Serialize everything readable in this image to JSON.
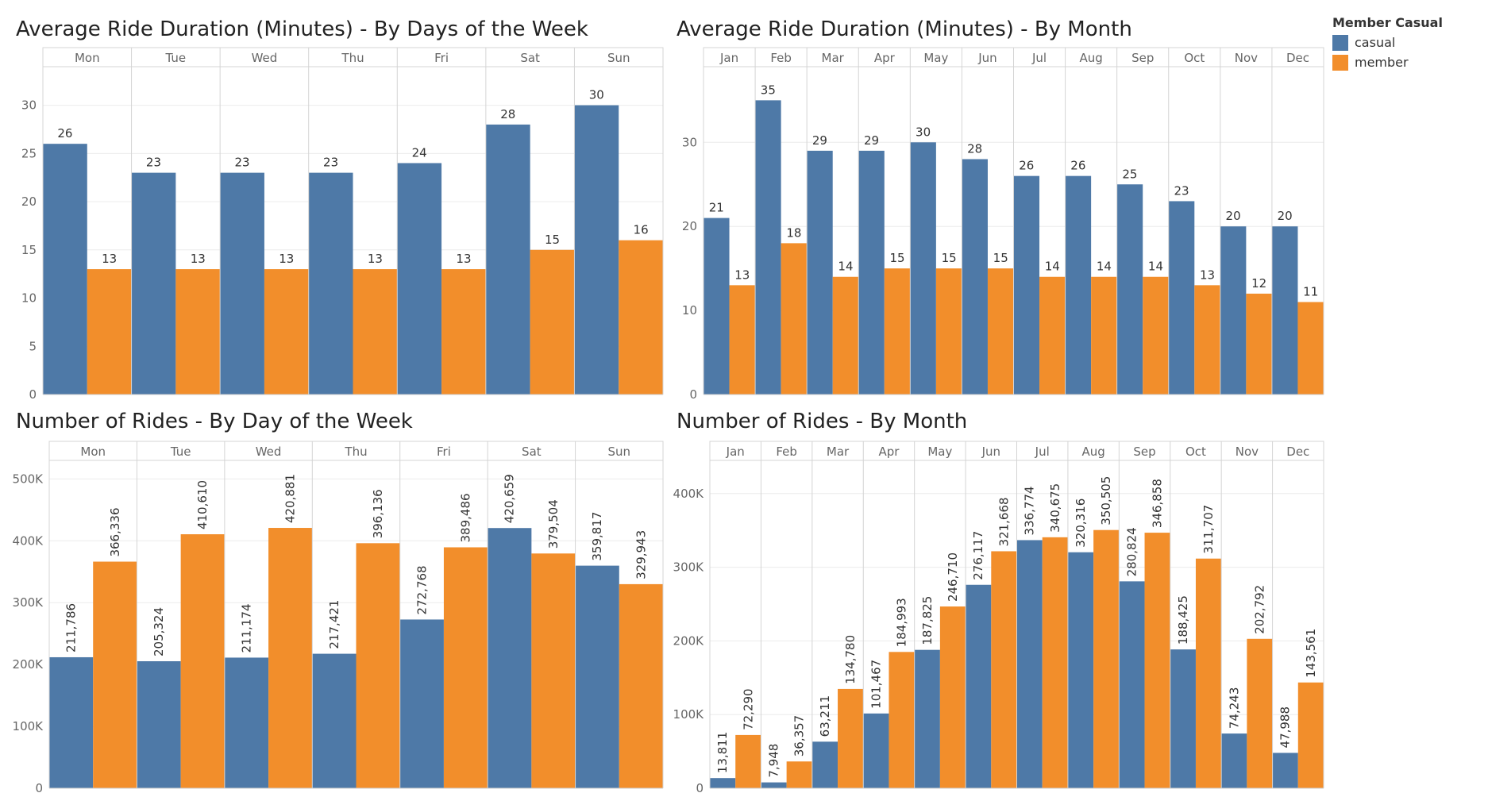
{
  "legend": {
    "title": "Member Casual",
    "items": [
      {
        "label": "casual",
        "color": "#4e79a7"
      },
      {
        "label": "member",
        "color": "#f28e2b"
      }
    ]
  },
  "chart_data": [
    {
      "id": "duration-by-day",
      "type": "bar",
      "title": "Average Ride Duration (Minutes) - By Days of the Week",
      "categories": [
        "Mon",
        "Tue",
        "Wed",
        "Thu",
        "Fri",
        "Sat",
        "Sun"
      ],
      "series": [
        {
          "name": "casual",
          "values": [
            26,
            23,
            23,
            23,
            24,
            28,
            30
          ],
          "labels": [
            "26",
            "23",
            "23",
            "23",
            "24",
            "28",
            "30"
          ]
        },
        {
          "name": "member",
          "values": [
            13,
            13,
            13,
            13,
            13,
            15,
            16
          ],
          "labels": [
            "13",
            "13",
            "13",
            "13",
            "13",
            "15",
            "16"
          ]
        }
      ],
      "ylim": [
        0,
        34
      ],
      "yticks": [
        0,
        5,
        10,
        15,
        20,
        25,
        30
      ],
      "ytick_labels": [
        "0",
        "5",
        "10",
        "15",
        "20",
        "25",
        "30"
      ],
      "label_orientation": "horizontal",
      "grid": true
    },
    {
      "id": "duration-by-month",
      "type": "bar",
      "title": "Average Ride Duration (Minutes) - By Month",
      "categories": [
        "Jan",
        "Feb",
        "Mar",
        "Apr",
        "May",
        "Jun",
        "Jul",
        "Aug",
        "Sep",
        "Oct",
        "Nov",
        "Dec"
      ],
      "series": [
        {
          "name": "casual",
          "values": [
            21,
            35,
            29,
            29,
            30,
            28,
            26,
            26,
            25,
            23,
            20,
            20
          ],
          "labels": [
            "21",
            "35",
            "29",
            "29",
            "30",
            "28",
            "26",
            "26",
            "25",
            "23",
            "20",
            "20"
          ]
        },
        {
          "name": "member",
          "values": [
            13,
            18,
            14,
            15,
            15,
            15,
            14,
            14,
            14,
            13,
            12,
            11
          ],
          "labels": [
            "13",
            "18",
            "14",
            "15",
            "15",
            "15",
            "14",
            "14",
            "14",
            "13",
            "12",
            "11"
          ]
        }
      ],
      "ylim": [
        0,
        39
      ],
      "yticks": [
        0,
        10,
        20,
        30
      ],
      "ytick_labels": [
        "0",
        "10",
        "20",
        "30"
      ],
      "label_orientation": "horizontal",
      "grid": true
    },
    {
      "id": "rides-by-day",
      "type": "bar",
      "title": "Number of Rides - By Day of the Week",
      "categories": [
        "Mon",
        "Tue",
        "Wed",
        "Thu",
        "Fri",
        "Sat",
        "Sun"
      ],
      "series": [
        {
          "name": "casual",
          "values": [
            211786,
            205324,
            211174,
            217421,
            272768,
            420659,
            359817
          ],
          "labels": [
            "211,786",
            "205,324",
            "211,174",
            "217,421",
            "272,768",
            "420,659",
            "359,817"
          ]
        },
        {
          "name": "member",
          "values": [
            366336,
            410610,
            420881,
            396136,
            389486,
            379504,
            329943
          ],
          "labels": [
            "366,336",
            "410,610",
            "420,881",
            "396,136",
            "389,486",
            "379,504",
            "329,943"
          ]
        }
      ],
      "ylim": [
        0,
        530000
      ],
      "yticks": [
        0,
        100000,
        200000,
        300000,
        400000,
        500000
      ],
      "ytick_labels": [
        "0",
        "100K",
        "200K",
        "300K",
        "400K",
        "500K"
      ],
      "label_orientation": "vertical",
      "grid": true
    },
    {
      "id": "rides-by-month",
      "type": "bar",
      "title": "Number of Rides - By Month",
      "categories": [
        "Jan",
        "Feb",
        "Mar",
        "Apr",
        "May",
        "Jun",
        "Jul",
        "Aug",
        "Sep",
        "Oct",
        "Nov",
        "Dec"
      ],
      "series": [
        {
          "name": "casual",
          "values": [
            13811,
            7948,
            63211,
            101467,
            187825,
            276117,
            336774,
            320316,
            280824,
            188425,
            74243,
            47988
          ],
          "labels": [
            "13,811",
            "7,948",
            "63,211",
            "101,467",
            "187,825",
            "276,117",
            "336,774",
            "320,316",
            "280,824",
            "188,425",
            "74,243",
            "47,988"
          ]
        },
        {
          "name": "member",
          "values": [
            72290,
            36357,
            134780,
            184993,
            246710,
            321668,
            340675,
            350505,
            346858,
            311707,
            202792,
            143561
          ],
          "labels": [
            "72,290",
            "36,357",
            "134,780",
            "184,993",
            "246,710",
            "321,668",
            "340,675",
            "350,505",
            "346,858",
            "311,707",
            "202,792",
            "143,561"
          ]
        }
      ],
      "ylim": [
        0,
        445000
      ],
      "yticks": [
        0,
        100000,
        200000,
        300000,
        400000
      ],
      "ytick_labels": [
        "0",
        "100K",
        "200K",
        "300K",
        "400K"
      ],
      "label_orientation": "vertical",
      "grid": true
    }
  ]
}
